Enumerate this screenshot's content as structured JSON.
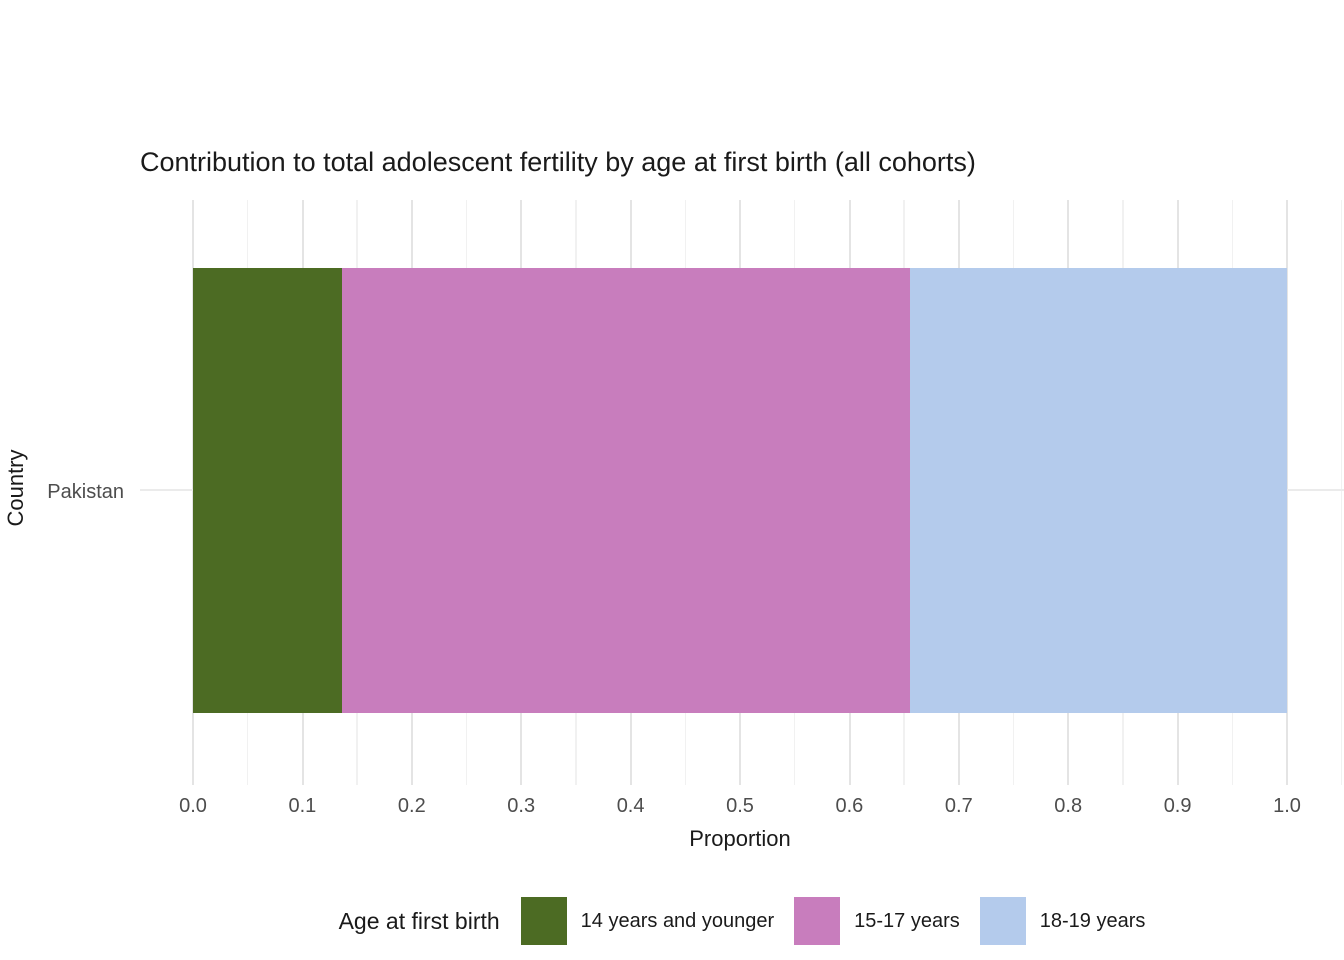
{
  "chart_data": {
    "type": "bar",
    "orientation": "horizontal",
    "stacked": true,
    "title": "Contribution to total adolescent fertility by age at first birth (all cohorts)",
    "xlabel": "Proportion",
    "ylabel": "Country",
    "categories": [
      "Pakistan"
    ],
    "series": [
      {
        "name": "14 years and younger",
        "color": "#4c6b23",
        "values": [
          0.136
        ]
      },
      {
        "name": "15-17 years",
        "color": "#c87dbd",
        "values": [
          0.519
        ]
      },
      {
        "name": "18-19 years",
        "color": "#b4cbec",
        "values": [
          0.345
        ]
      }
    ],
    "xlim": [
      0.0,
      1.0
    ],
    "x_ticks": [
      "0.0",
      "0.1",
      "0.2",
      "0.3",
      "0.4",
      "0.5",
      "0.6",
      "0.7",
      "0.8",
      "0.9",
      "1.0"
    ],
    "x_tick_values": [
      0.0,
      0.1,
      0.2,
      0.3,
      0.4,
      0.5,
      0.6,
      0.7,
      0.8,
      0.9,
      1.0
    ],
    "grid": true,
    "legend_title": "Age at first birth",
    "legend_position": "bottom",
    "colors": {
      "grid_major": "#e4e4e4",
      "grid_minor": "#f1f1f1",
      "tick_text": "#4d4d4d",
      "text": "#1a1a1a"
    }
  }
}
